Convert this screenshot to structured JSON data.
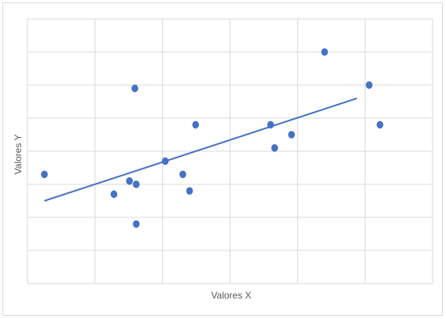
{
  "chart_data": {
    "type": "scatter",
    "title": "",
    "xlabel": "Valores X",
    "ylabel": "Valores Y",
    "xlim": [
      0,
      6
    ],
    "ylim": [
      0,
      8
    ],
    "x_gridlines": [
      1,
      2,
      3,
      4,
      5,
      6
    ],
    "y_gridlines": [
      1,
      2,
      3,
      4,
      5,
      6,
      7,
      8
    ],
    "grid": true,
    "tick_labels_visible": false,
    "legend": "none",
    "point_color": "#4472c4",
    "trendline_color": "#4472c4",
    "series": [
      {
        "points": [
          {
            "x": 0.25,
            "y": 3.3
          },
          {
            "x": 1.28,
            "y": 2.7
          },
          {
            "x": 1.51,
            "y": 3.1
          },
          {
            "x": 1.59,
            "y": 5.9
          },
          {
            "x": 1.61,
            "y": 3.0
          },
          {
            "x": 1.61,
            "y": 1.8
          },
          {
            "x": 2.04,
            "y": 3.7
          },
          {
            "x": 2.3,
            "y": 3.3
          },
          {
            "x": 2.4,
            "y": 2.8
          },
          {
            "x": 2.49,
            "y": 4.8
          },
          {
            "x": 3.6,
            "y": 4.8
          },
          {
            "x": 3.66,
            "y": 4.1
          },
          {
            "x": 3.91,
            "y": 4.5
          },
          {
            "x": 4.4,
            "y": 7.0
          },
          {
            "x": 5.06,
            "y": 6.0
          },
          {
            "x": 5.22,
            "y": 4.8
          }
        ]
      }
    ],
    "trendline": {
      "type": "linear",
      "x_start": 0.25,
      "y_start": 2.5,
      "x_end": 4.88,
      "y_end": 5.6
    }
  }
}
